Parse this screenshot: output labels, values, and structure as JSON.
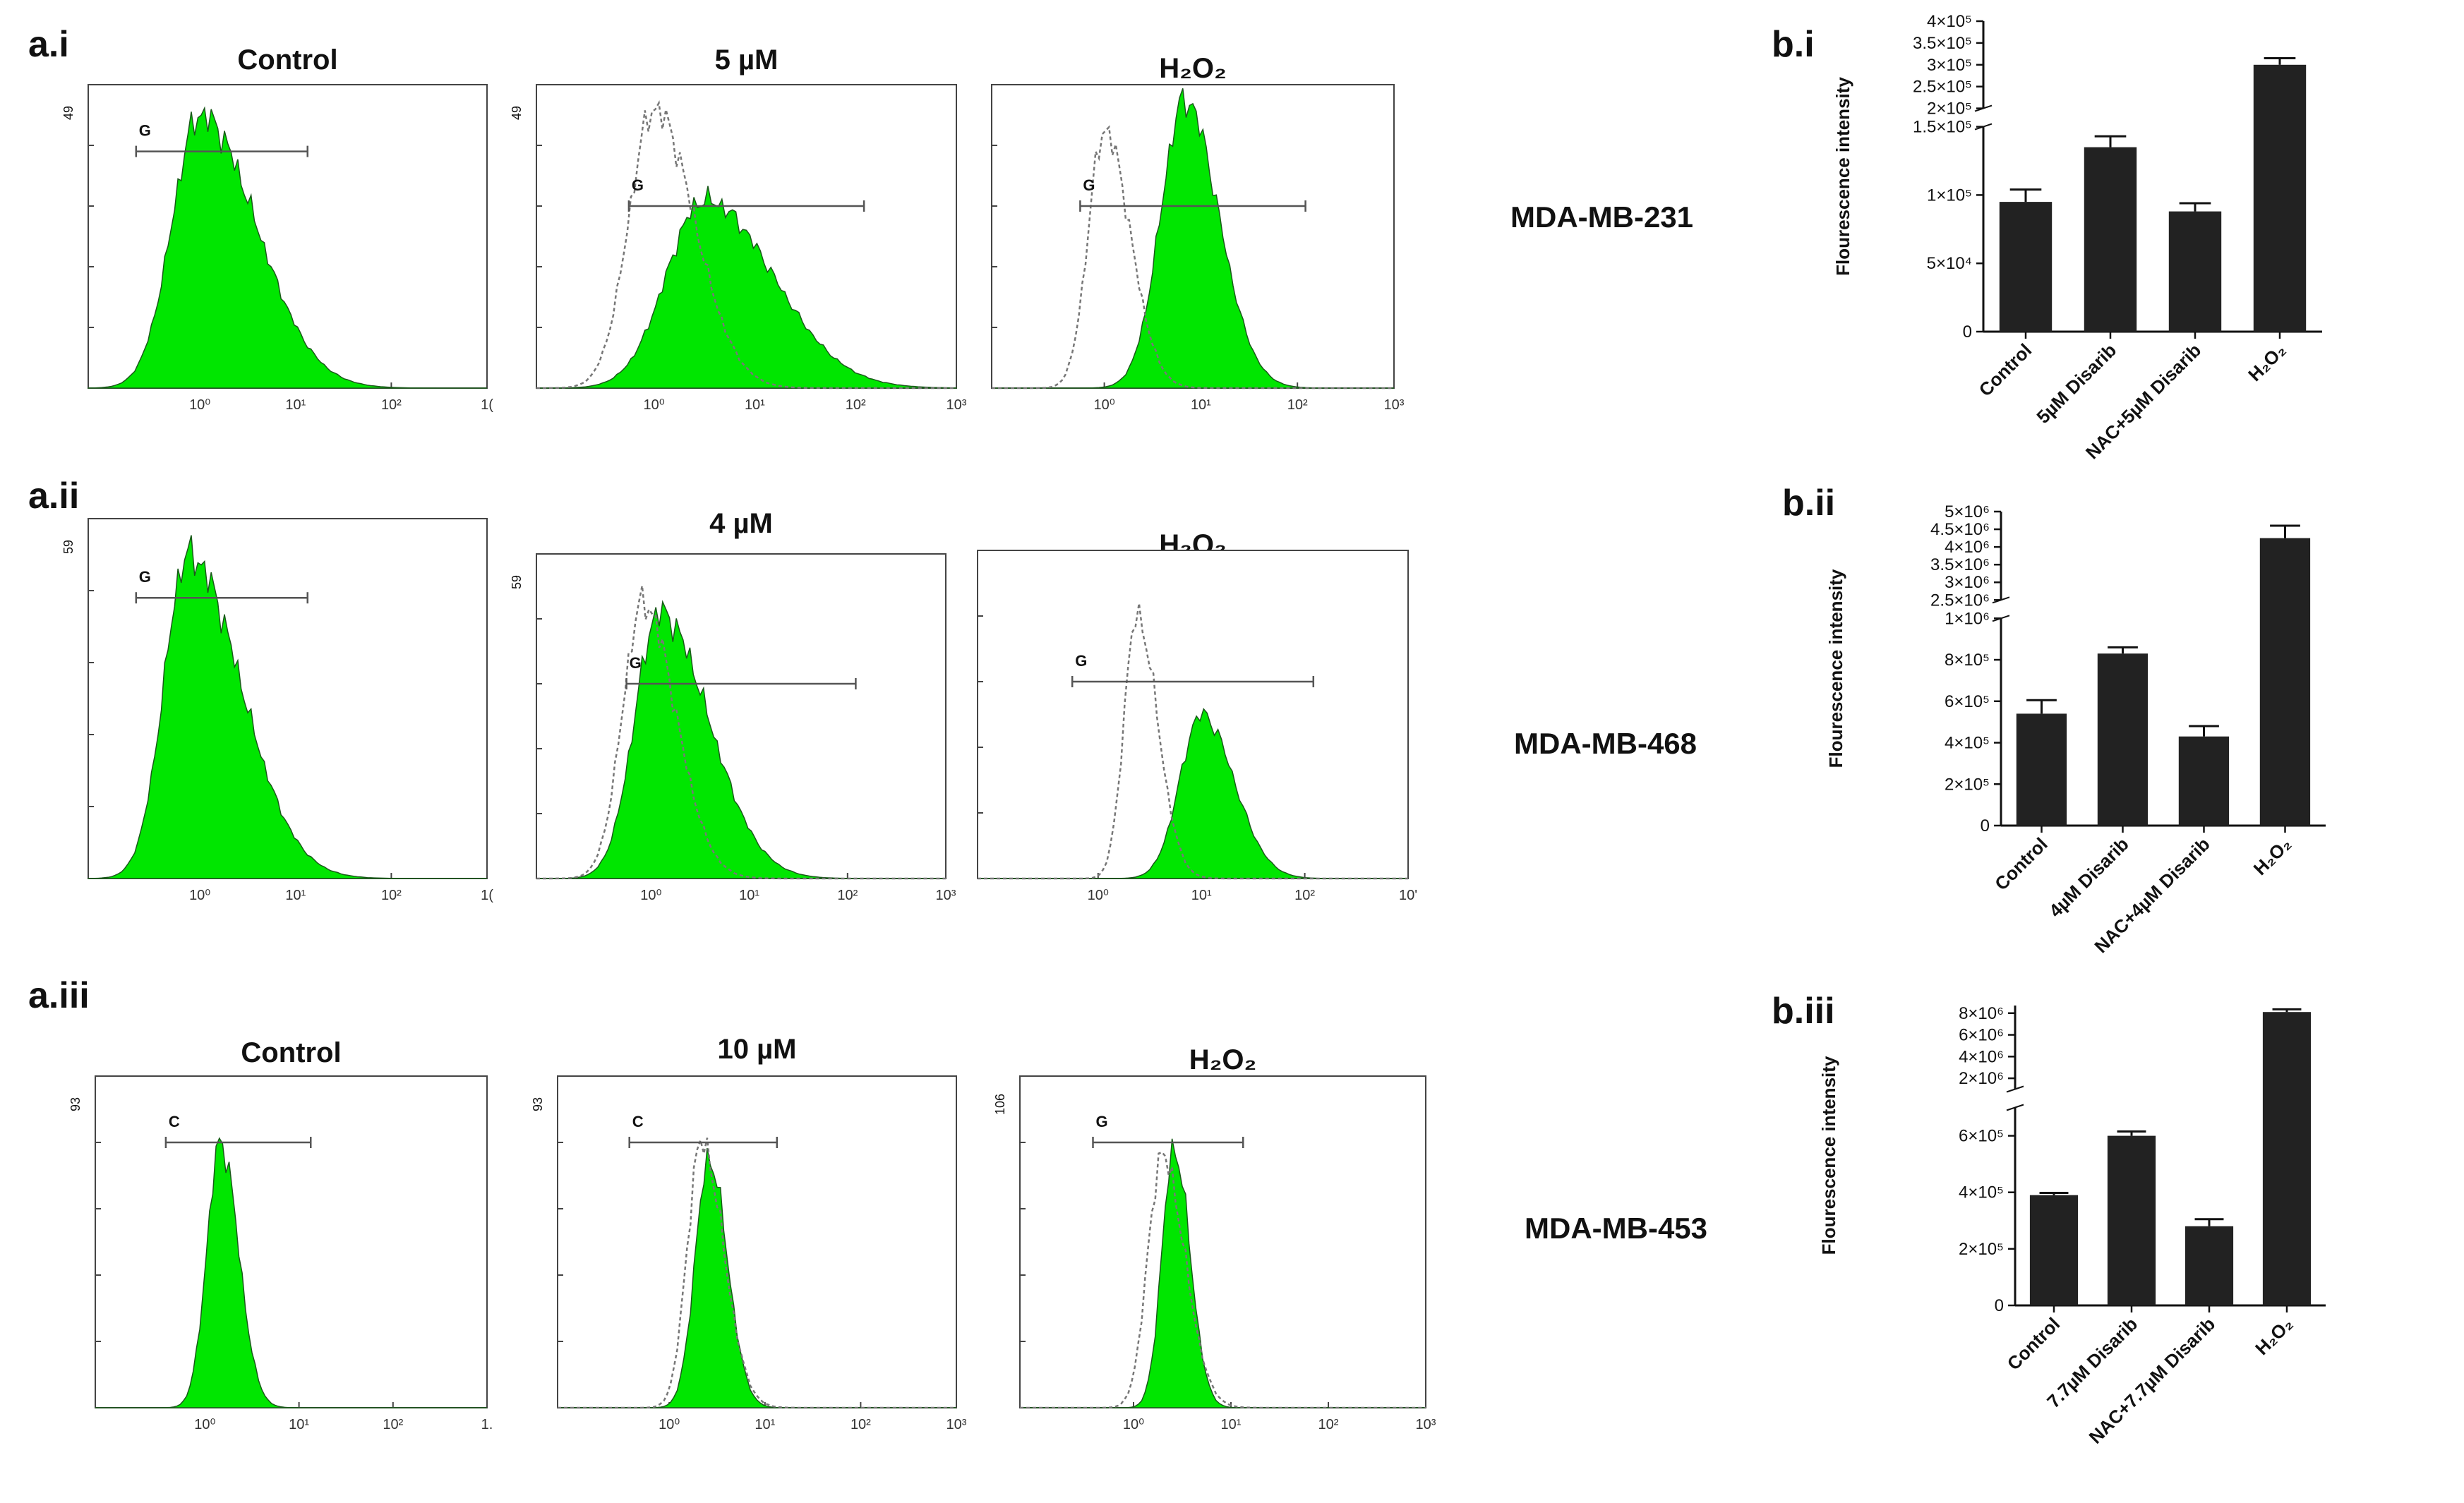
{
  "figure": {
    "rows": [
      {
        "id": "i",
        "panel_a_label": "a.i",
        "panel_b_label": "b.i",
        "cell_line": "MDA-MB-231",
        "histograms": [
          {
            "title": "Control",
            "gate": "G",
            "y_max": "49",
            "x_ticks": [
              "10⁰",
              "10¹",
              "10²",
              "1("
            ],
            "overlay": false
          },
          {
            "title": "5 µM",
            "gate": "G",
            "y_max": "49",
            "x_ticks": [
              "10⁰",
              "10¹",
              "10²",
              "10³"
            ],
            "overlay": true
          },
          {
            "title": "H₂O₂",
            "gate": "G",
            "y_max": "",
            "x_ticks": [
              "10⁰",
              "10¹",
              "10²",
              "10³"
            ],
            "overlay": true
          }
        ]
      },
      {
        "id": "ii",
        "panel_a_label": "a.ii",
        "panel_b_label": "b.ii",
        "cell_line": "MDA-MB-468",
        "histograms": [
          {
            "title": "Control",
            "gate": "G",
            "y_max": "59",
            "x_ticks": [
              "10⁰",
              "10¹",
              "10²",
              "1("
            ],
            "overlay": false
          },
          {
            "title": "4 µM",
            "gate": "G",
            "y_max": "59",
            "x_ticks": [
              "10⁰",
              "10¹",
              "10²",
              "10³"
            ],
            "overlay": true
          },
          {
            "title": "H₂O₂",
            "gate": "G",
            "y_max": "",
            "x_ticks": [
              "10⁰",
              "10¹",
              "10²",
              "10'"
            ],
            "overlay": true
          }
        ]
      },
      {
        "id": "iii",
        "panel_a_label": "a.iii",
        "panel_b_label": "b.iii",
        "cell_line": "MDA-MB-453",
        "histograms": [
          {
            "title": "Control",
            "gate": "C",
            "y_max": "93",
            "x_ticks": [
              "10⁰",
              "10¹",
              "10²",
              "1."
            ],
            "overlay": false
          },
          {
            "title": "10 µM",
            "gate": "C",
            "y_max": "93",
            "x_ticks": [
              "10⁰",
              "10¹",
              "10²",
              "10³"
            ],
            "overlay": true
          },
          {
            "title": "H₂O₂",
            "gate": "G",
            "y_max": "106",
            "x_ticks": [
              "10⁰",
              "10¹",
              "10²",
              "10³"
            ],
            "overlay": true
          }
        ]
      }
    ]
  },
  "chart_data": [
    {
      "type": "bar",
      "panel": "b.i",
      "ylabel": "Flourescence intensity",
      "categories": [
        "Control",
        "5µM Disarib",
        "NAC+5µM Disarib",
        "H₂O₂"
      ],
      "values": [
        95000,
        135000,
        88000,
        300000
      ],
      "errors": [
        9000,
        8000,
        6000,
        15000
      ],
      "y_broken": true,
      "lower_range": [
        0,
        150000
      ],
      "upper_range": [
        200000,
        400000
      ],
      "lower_ticks": [
        0,
        50000,
        100000,
        150000
      ],
      "lower_tick_labels": [
        "0",
        "5×10⁴",
        "1×10⁵",
        "1.5×10⁵"
      ],
      "upper_ticks": [
        200000,
        250000,
        300000,
        350000,
        400000
      ],
      "upper_tick_labels": [
        "2×10⁵",
        "2.5×10⁵",
        "3×10⁵",
        "3.5×10⁵",
        "4×10⁵"
      ]
    },
    {
      "type": "bar",
      "panel": "b.ii",
      "ylabel": "Flourescence intensity",
      "categories": [
        "Control",
        "4µM Disarib",
        "NAC+4µM Disarib",
        "H₂O₂"
      ],
      "values": [
        540000,
        830000,
        430000,
        4250000
      ],
      "errors": [
        65000,
        30000,
        50000,
        350000
      ],
      "y_broken": true,
      "lower_range": [
        0,
        1000000
      ],
      "upper_range": [
        2500000,
        5000000
      ],
      "lower_ticks": [
        0,
        200000,
        400000,
        600000,
        800000,
        1000000
      ],
      "lower_tick_labels": [
        "0",
        "2×10⁵",
        "4×10⁵",
        "6×10⁵",
        "8×10⁵",
        "1×10⁶"
      ],
      "upper_ticks": [
        2500000,
        3000000,
        3500000,
        4000000,
        4500000,
        5000000
      ],
      "upper_tick_labels": [
        "2.5×10⁶",
        "3×10⁶",
        "3.5×10⁶",
        "4×10⁶",
        "4.5×10⁶",
        "5×10⁶"
      ]
    },
    {
      "type": "bar",
      "panel": "b.iii",
      "ylabel": "Flourescence intensity",
      "categories": [
        "Control",
        "7.7µM Disarib",
        "NAC+7.7µM Disarib",
        "H₂O₂"
      ],
      "values": [
        390000,
        600000,
        280000,
        8100000
      ],
      "errors": [
        8000,
        15000,
        25000,
        250000
      ],
      "y_broken": true,
      "lower_range": [
        0,
        700000
      ],
      "upper_range": [
        1000000,
        8700000
      ],
      "lower_ticks": [
        0,
        200000,
        400000,
        600000
      ],
      "lower_tick_labels": [
        "0",
        "2×10⁵",
        "4×10⁵",
        "6×10⁵"
      ],
      "upper_ticks": [
        2000000,
        4000000,
        6000000,
        8000000
      ],
      "upper_tick_labels": [
        "2×10⁶",
        "4×10⁶",
        "6×10⁶",
        "8×10⁶"
      ]
    }
  ]
}
